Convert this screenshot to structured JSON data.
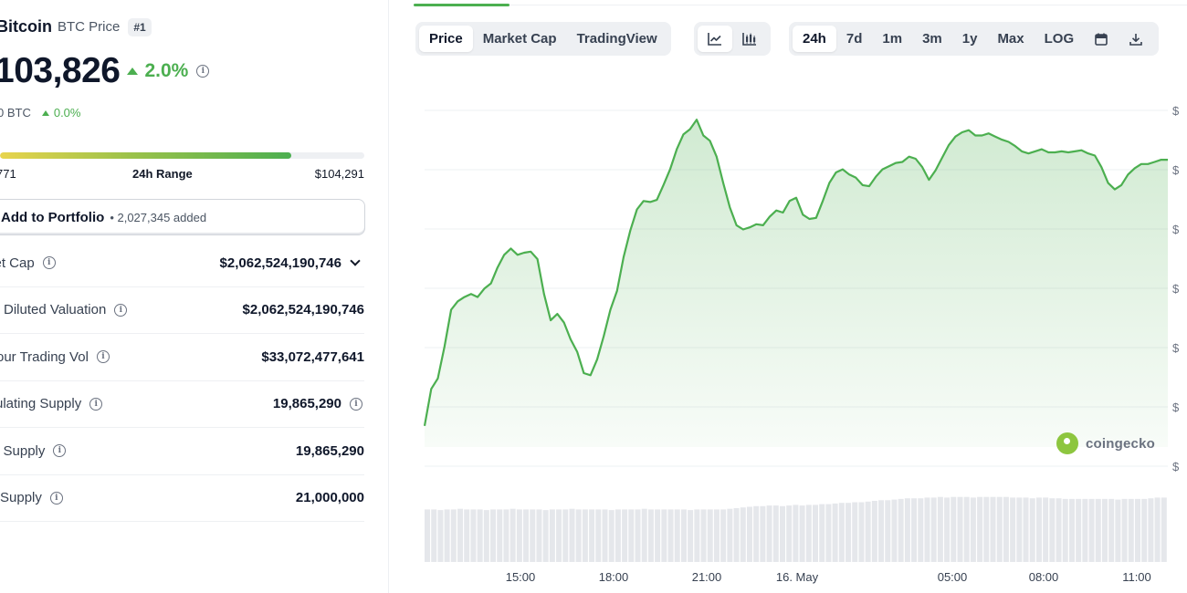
{
  "coin": {
    "name": "Bitcoin",
    "subtitle": "BTC Price",
    "rank": "#1",
    "price": "103,826",
    "change_24h": "2.0%",
    "btc_value": "0 BTC",
    "btc_change": "0.0%"
  },
  "range_24h": {
    "low_label": "771",
    "label": "24h Range",
    "high_label": "$104,291",
    "fill_fraction": 0.8
  },
  "portfolio": {
    "button_label": "Add to Portfolio",
    "added_text": "• 2,027,345 added"
  },
  "stats": [
    {
      "label": "ket Cap",
      "value": "$2,062,524,190,746",
      "has_info": true,
      "has_chevron": true,
      "value_info": false
    },
    {
      "label": "Diluted Valuation",
      "value": "$2,062,524,190,746",
      "has_info": true,
      "has_chevron": false,
      "value_info": false
    },
    {
      "label": "our Trading Vol",
      "value": "$33,072,477,641",
      "has_info": true,
      "has_chevron": false,
      "value_info": false
    },
    {
      "label": "ulating Supply",
      "value": "19,865,290",
      "has_info": true,
      "has_chevron": false,
      "value_info": true
    },
    {
      "label": "l Supply",
      "value": "19,865,290",
      "has_info": true,
      "has_chevron": false,
      "value_info": false
    },
    {
      "label": "Supply",
      "value": "21,000,000",
      "has_info": true,
      "has_chevron": false,
      "value_info": false
    }
  ],
  "toolbar": {
    "view_tabs": [
      "Price",
      "Market Cap",
      "TradingView"
    ],
    "active_view": "Price",
    "chart_type_icons": [
      "line-chart-icon",
      "candlestick-chart-icon"
    ],
    "active_chart_type": "line-chart-icon",
    "range_tabs": [
      "24h",
      "7d",
      "1m",
      "3m",
      "1y",
      "Max",
      "LOG"
    ],
    "active_range": "24h",
    "extra_icons": [
      "calendar-icon",
      "download-icon"
    ]
  },
  "watermark": "coingecko",
  "colors": {
    "accent_green": "#4caf50",
    "text_dark": "#0f172a",
    "muted": "#6b7280",
    "panel_bg": "#eef0f3"
  },
  "chart_data": {
    "type": "area",
    "x_tick_labels": [
      "15:00",
      "18:00",
      "21:00",
      "16. May",
      "05:00",
      "08:00",
      "11:00"
    ],
    "y_tick_labels": [
      "$",
      "$",
      "$",
      "$",
      "$",
      "$",
      "$"
    ],
    "y_unit": "USD",
    "series": [
      {
        "values": [
          101200,
          101550,
          101650,
          101950,
          102300,
          102380,
          102420,
          102450,
          102420,
          102500,
          102550,
          102700,
          102820,
          102880,
          102820,
          102840,
          102850,
          102780,
          102450,
          102200,
          102260,
          102180,
          102020,
          101900,
          101700,
          101680,
          101830,
          102050,
          102300,
          102480,
          102800,
          103050,
          103250,
          103330,
          103320,
          103340,
          103480,
          103630,
          103820,
          103960,
          104010,
          104100,
          103950,
          103900,
          103750,
          103500,
          103270,
          103100,
          103060,
          103080,
          103110,
          103100,
          103180,
          103240,
          103220,
          103330,
          103360,
          103200,
          103160,
          103170,
          103330,
          103500,
          103600,
          103630,
          103580,
          103550,
          103480,
          103470,
          103560,
          103630,
          103660,
          103690,
          103700,
          103750,
          103730,
          103650,
          103530,
          103620,
          103740,
          103860,
          103940,
          103980,
          104000,
          103950,
          103950,
          103970,
          103940,
          103910,
          103890,
          103850,
          103800,
          103780,
          103800,
          103820,
          103790,
          103790,
          103800,
          103790,
          103800,
          103810,
          103780,
          103760,
          103650,
          103500,
          103440,
          103480,
          103580,
          103640,
          103680,
          103680,
          103700,
          103720,
          103720
        ]
      }
    ],
    "volume": [
      0.8,
      0.8,
      0.79,
      0.8,
      0.8,
      0.81,
      0.8,
      0.8,
      0.8,
      0.79,
      0.8,
      0.8,
      0.8,
      0.81,
      0.8,
      0.8,
      0.8,
      0.8,
      0.79,
      0.8,
      0.8,
      0.8,
      0.81,
      0.8,
      0.8,
      0.8,
      0.8,
      0.8,
      0.79,
      0.8,
      0.8,
      0.8,
      0.8,
      0.81,
      0.8,
      0.8,
      0.8,
      0.8,
      0.8,
      0.8,
      0.79,
      0.8,
      0.8,
      0.8,
      0.8,
      0.8,
      0.81,
      0.82,
      0.83,
      0.84,
      0.85,
      0.85,
      0.86,
      0.86,
      0.85,
      0.86,
      0.87,
      0.86,
      0.87,
      0.87,
      0.88,
      0.88,
      0.89,
      0.9,
      0.9,
      0.91,
      0.91,
      0.92,
      0.93,
      0.94,
      0.94,
      0.95,
      0.96,
      0.97,
      0.97,
      0.97,
      0.98,
      0.98,
      0.99,
      0.98,
      0.99,
      0.99,
      0.99,
      0.98,
      0.99,
      0.99,
      0.99,
      0.99,
      0.99,
      0.98,
      0.98,
      0.98,
      0.97,
      0.98,
      0.98,
      0.97,
      0.97,
      0.96,
      0.96,
      0.96,
      0.96,
      0.96,
      0.96,
      0.96,
      0.96,
      0.95,
      0.96,
      0.96,
      0.96,
      0.96,
      0.97,
      0.98,
      0.98
    ],
    "ylim": [
      101000,
      104300
    ],
    "grid": true,
    "legend": "none"
  }
}
